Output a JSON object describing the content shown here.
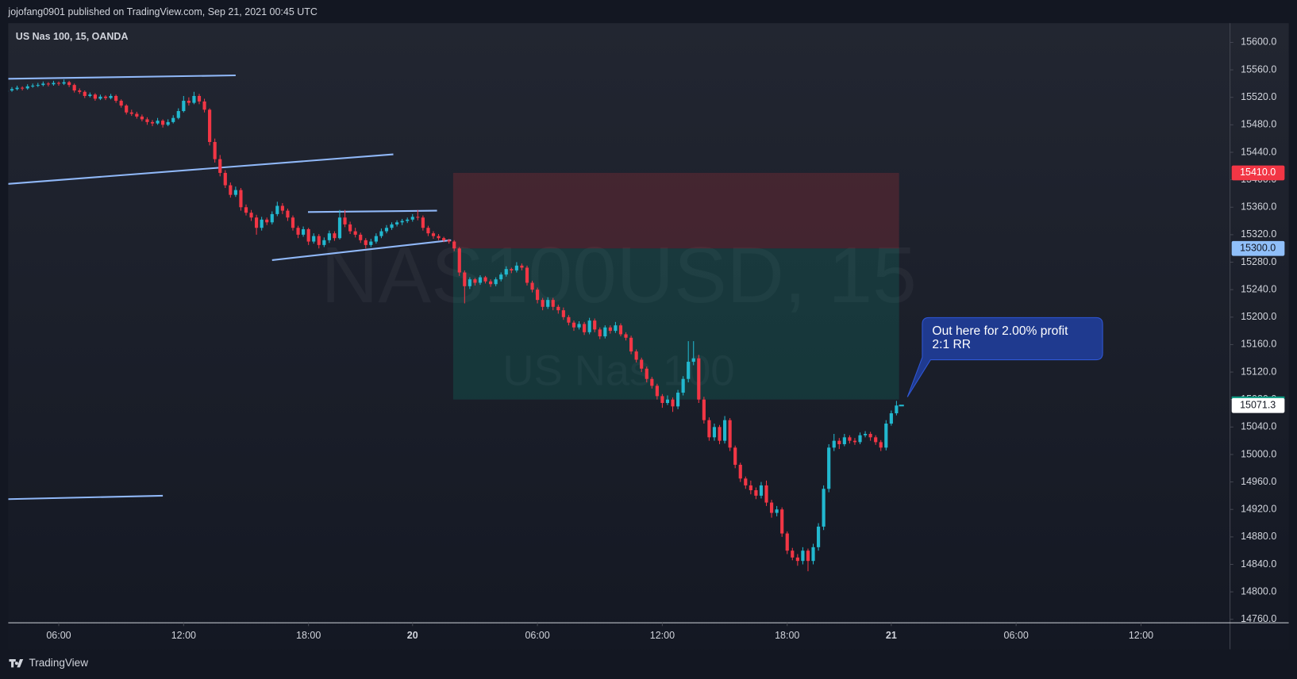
{
  "header": {
    "publisher": "jojofang0901 published on TradingView.com, Sep 21, 2021 00:45 UTC",
    "brand": "TradingView"
  },
  "chart_data": {
    "type": "candlestick",
    "title": "US Nas 100, 15, OANDA",
    "watermark": "NAS100USD, 15",
    "watermark_subtitle": "US Nas 100",
    "up_color": "#22b8cf",
    "down_color": "#f23645",
    "xlim": [
      0.3,
      235.1
    ],
    "xticks": [
      {
        "value": 10,
        "label": "06:00"
      },
      {
        "value": 34,
        "label": "12:00"
      },
      {
        "value": 58,
        "label": "18:00"
      },
      {
        "value": 78,
        "label": "20"
      },
      {
        "value": 102,
        "label": "06:00"
      },
      {
        "value": 126,
        "label": "12:00"
      },
      {
        "value": 150,
        "label": "18:00"
      },
      {
        "value": 170,
        "label": "21"
      },
      {
        "value": 194,
        "label": "06:00"
      },
      {
        "value": 218,
        "label": "12:00"
      }
    ],
    "ylim": [
      14755,
      15628
    ],
    "yticks": [
      {
        "value": 15600,
        "label": "15600.0"
      },
      {
        "value": 15560,
        "label": "15560.0"
      },
      {
        "value": 15520,
        "label": "15520.0"
      },
      {
        "value": 15480,
        "label": "15480.0"
      },
      {
        "value": 15440,
        "label": "15440.0"
      },
      {
        "value": 15400,
        "label": "15400.0"
      },
      {
        "value": 15360,
        "label": "15360.0"
      },
      {
        "value": 15320,
        "label": "15320.0"
      },
      {
        "value": 15280,
        "label": "15280.0"
      },
      {
        "value": 15240,
        "label": "15240.0"
      },
      {
        "value": 15200,
        "label": "15200.0"
      },
      {
        "value": 15160,
        "label": "15160.0"
      },
      {
        "value": 15120,
        "label": "15120.0"
      },
      {
        "value": 15080,
        "label": "15080.0"
      },
      {
        "value": 15040,
        "label": "15040.0"
      },
      {
        "value": 15000,
        "label": "15000.0"
      },
      {
        "value": 14960,
        "label": "14960.0"
      },
      {
        "value": 14920,
        "label": "14920.0"
      },
      {
        "value": 14880,
        "label": "14880.0"
      },
      {
        "value": 14840,
        "label": "14840.0"
      },
      {
        "value": 14800,
        "label": "14800.0"
      },
      {
        "value": 14760,
        "label": "14760.0"
      }
    ],
    "candles": [
      [
        15528,
        15533,
        15525,
        15530
      ],
      [
        15530,
        15535,
        15528,
        15532
      ],
      [
        15532,
        15537,
        15530,
        15534
      ],
      [
        15534,
        15536,
        15530,
        15533
      ],
      [
        15533,
        15539,
        15531,
        15536
      ],
      [
        15536,
        15540,
        15534,
        15537
      ],
      [
        15537,
        15541,
        15535,
        15538
      ],
      [
        15538,
        15543,
        15536,
        15540
      ],
      [
        15540,
        15542,
        15536,
        15539
      ],
      [
        15539,
        15544,
        15537,
        15541
      ],
      [
        15541,
        15543,
        15537,
        15540
      ],
      [
        15540,
        15546,
        15538,
        15542
      ],
      [
        15542,
        15544,
        15535,
        15538
      ],
      [
        15538,
        15540,
        15527,
        15530
      ],
      [
        15530,
        15533,
        15525,
        15528
      ],
      [
        15528,
        15530,
        15519,
        15522
      ],
      [
        15522,
        15527,
        15520,
        15524
      ],
      [
        15524,
        15526,
        15515,
        15518
      ],
      [
        15518,
        15524,
        15516,
        15521
      ],
      [
        15521,
        15523,
        15516,
        15519
      ],
      [
        15519,
        15525,
        15517,
        15522
      ],
      [
        15522,
        15524,
        15512,
        15515
      ],
      [
        15515,
        15517,
        15505,
        15508
      ],
      [
        15508,
        15510,
        15495,
        15498
      ],
      [
        15498,
        15502,
        15493,
        15496
      ],
      [
        15496,
        15499,
        15489,
        15492
      ],
      [
        15492,
        15495,
        15485,
        15488
      ],
      [
        15488,
        15491,
        15480,
        15484
      ],
      [
        15484,
        15487,
        15478,
        15482
      ],
      [
        15482,
        15490,
        15480,
        15486
      ],
      [
        15486,
        15488,
        15476,
        15480
      ],
      [
        15480,
        15488,
        15478,
        15484
      ],
      [
        15484,
        15494,
        15482,
        15490
      ],
      [
        15490,
        15504,
        15488,
        15500
      ],
      [
        15500,
        15522,
        15498,
        15515
      ],
      [
        15515,
        15520,
        15508,
        15512
      ],
      [
        15512,
        15528,
        15510,
        15522
      ],
      [
        15522,
        15525,
        15510,
        15514
      ],
      [
        15514,
        15518,
        15498,
        15502
      ],
      [
        15502,
        15504,
        15450,
        15455
      ],
      [
        15455,
        15460,
        15425,
        15430
      ],
      [
        15430,
        15436,
        15405,
        15410
      ],
      [
        15410,
        15414,
        15388,
        15392
      ],
      [
        15392,
        15396,
        15374,
        15378
      ],
      [
        15378,
        15390,
        15375,
        15385
      ],
      [
        15385,
        15388,
        15355,
        15360
      ],
      [
        15360,
        15364,
        15348,
        15352
      ],
      [
        15352,
        15356,
        15340,
        15345
      ],
      [
        15345,
        15349,
        15320,
        15330
      ],
      [
        15330,
        15346,
        15326,
        15342
      ],
      [
        15342,
        15345,
        15334,
        15338
      ],
      [
        15338,
        15354,
        15335,
        15350
      ],
      [
        15350,
        15368,
        15347,
        15362
      ],
      [
        15362,
        15366,
        15350,
        15355
      ],
      [
        15355,
        15358,
        15340,
        15345
      ],
      [
        15345,
        15348,
        15326,
        15330
      ],
      [
        15330,
        15333,
        15315,
        15320
      ],
      [
        15320,
        15332,
        15317,
        15328
      ],
      [
        15328,
        15330,
        15305,
        15310
      ],
      [
        15310,
        15322,
        15307,
        15318
      ],
      [
        15318,
        15321,
        15300,
        15305
      ],
      [
        15305,
        15316,
        15302,
        15312
      ],
      [
        15312,
        15326,
        15308,
        15322
      ],
      [
        15322,
        15325,
        15311,
        15315
      ],
      [
        15315,
        15356,
        15313,
        15345
      ],
      [
        15345,
        15356,
        15331,
        15335
      ],
      [
        15335,
        15339,
        15321,
        15325
      ],
      [
        15325,
        15330,
        15316,
        15320
      ],
      [
        15320,
        15323,
        15308,
        15312
      ],
      [
        15312,
        15315,
        15300,
        15305
      ],
      [
        15305,
        15314,
        15302,
        15310
      ],
      [
        15310,
        15322,
        15307,
        15318
      ],
      [
        15318,
        15329,
        15315,
        15325
      ],
      [
        15325,
        15334,
        15322,
        15330
      ],
      [
        15330,
        15338,
        15327,
        15335
      ],
      [
        15335,
        15341,
        15332,
        15338
      ],
      [
        15338,
        15343,
        15334,
        15340
      ],
      [
        15340,
        15345,
        15337,
        15342
      ],
      [
        15342,
        15350,
        15339,
        15346
      ],
      [
        15346,
        15356,
        15341,
        15345
      ],
      [
        15345,
        15348,
        15326,
        15330
      ],
      [
        15330,
        15333,
        15318,
        15322
      ],
      [
        15322,
        15325,
        15314,
        15318
      ],
      [
        15318,
        15321,
        15312,
        15315
      ],
      [
        15315,
        15317,
        15309,
        15312
      ],
      [
        15312,
        15314,
        15307,
        15310
      ],
      [
        15310,
        15312,
        15296,
        15300
      ],
      [
        15300,
        15302,
        15260,
        15265
      ],
      [
        15265,
        15268,
        15220,
        15245
      ],
      [
        15245,
        15258,
        15241,
        15255
      ],
      [
        15255,
        15257,
        15246,
        15250
      ],
      [
        15250,
        15261,
        15247,
        15258
      ],
      [
        15258,
        15260,
        15249,
        15252
      ],
      [
        15252,
        15255,
        15244,
        15248
      ],
      [
        15248,
        15258,
        15245,
        15255
      ],
      [
        15255,
        15265,
        15252,
        15262
      ],
      [
        15262,
        15274,
        15259,
        15270
      ],
      [
        15270,
        15272,
        15264,
        15268
      ],
      [
        15268,
        15280,
        15265,
        15275
      ],
      [
        15275,
        15278,
        15268,
        15272
      ],
      [
        15272,
        15275,
        15246,
        15250
      ],
      [
        15250,
        15253,
        15236,
        15240
      ],
      [
        15240,
        15243,
        15220,
        15225
      ],
      [
        15225,
        15228,
        15210,
        15215
      ],
      [
        15215,
        15229,
        15212,
        15225
      ],
      [
        15225,
        15228,
        15210,
        15215
      ],
      [
        15215,
        15218,
        15205,
        15210
      ],
      [
        15210,
        15214,
        15196,
        15200
      ],
      [
        15200,
        15203,
        15188,
        15192
      ],
      [
        15192,
        15195,
        15180,
        15185
      ],
      [
        15185,
        15194,
        15182,
        15190
      ],
      [
        15190,
        15193,
        15174,
        15178
      ],
      [
        15178,
        15199,
        15175,
        15195
      ],
      [
        15195,
        15198,
        15178,
        15182
      ],
      [
        15182,
        15185,
        15168,
        15172
      ],
      [
        15172,
        15188,
        15169,
        15185
      ],
      [
        15185,
        15188,
        15176,
        15180
      ],
      [
        15180,
        15193,
        15177,
        15188
      ],
      [
        15188,
        15191,
        15172,
        15175
      ],
      [
        15175,
        15178,
        15166,
        15170
      ],
      [
        15170,
        15173,
        15146,
        15150
      ],
      [
        15150,
        15153,
        15134,
        15138
      ],
      [
        15138,
        15141,
        15120,
        15125
      ],
      [
        15125,
        15128,
        15105,
        15110
      ],
      [
        15110,
        15113,
        15096,
        15100
      ],
      [
        15100,
        15103,
        15080,
        15085
      ],
      [
        15085,
        15088,
        15068,
        15075
      ],
      [
        15075,
        15086,
        15072,
        15080
      ],
      [
        15080,
        15083,
        15062,
        15070
      ],
      [
        15070,
        15094,
        15066,
        15090
      ],
      [
        15090,
        15114,
        15086,
        15110
      ],
      [
        15110,
        15165,
        15105,
        15135
      ],
      [
        15135,
        15165,
        15130,
        15140
      ],
      [
        15140,
        15145,
        15075,
        15080
      ],
      [
        15080,
        15084,
        15045,
        15050
      ],
      [
        15050,
        15054,
        15020,
        15025
      ],
      [
        15025,
        15045,
        15020,
        15040
      ],
      [
        15040,
        15043,
        15015,
        15020
      ],
      [
        15020,
        15056,
        15016,
        15050
      ],
      [
        15050,
        15053,
        15005,
        15010
      ],
      [
        15010,
        15013,
        14980,
        14985
      ],
      [
        14985,
        14988,
        14960,
        14965
      ],
      [
        14965,
        14968,
        14950,
        14955
      ],
      [
        14955,
        14962,
        14942,
        14948
      ],
      [
        14948,
        14952,
        14935,
        14940
      ],
      [
        14940,
        14960,
        14936,
        14955
      ],
      [
        14955,
        14962,
        14925,
        14930
      ],
      [
        14930,
        14934,
        14908,
        14915
      ],
      [
        14915,
        14925,
        14910,
        14920
      ],
      [
        14920,
        14923,
        14880,
        14885
      ],
      [
        14885,
        14888,
        14855,
        14860
      ],
      [
        14860,
        14864,
        14846,
        14850
      ],
      [
        14850,
        14855,
        14838,
        14845
      ],
      [
        14845,
        14865,
        14840,
        14860
      ],
      [
        14860,
        14863,
        14830,
        14845
      ],
      [
        14845,
        14870,
        14840,
        14865
      ],
      [
        14865,
        14900,
        14860,
        14895
      ],
      [
        14895,
        14955,
        14890,
        14950
      ],
      [
        14950,
        15015,
        14945,
        15010
      ],
      [
        15010,
        15030,
        15005,
        15020
      ],
      [
        15020,
        15024,
        15008,
        15015
      ],
      [
        15015,
        15030,
        15012,
        15025
      ],
      [
        15025,
        15028,
        15016,
        15020
      ],
      [
        15020,
        15024,
        15014,
        15018
      ],
      [
        15018,
        15032,
        15015,
        15028
      ],
      [
        15028,
        15034,
        15025,
        15030
      ],
      [
        15030,
        15033,
        15020,
        15025
      ],
      [
        15025,
        15028,
        15014,
        15018
      ],
      [
        15018,
        15021,
        15005,
        15010
      ],
      [
        15010,
        15050,
        15006,
        15045
      ],
      [
        15045,
        15064,
        15042,
        15060
      ],
      [
        15060,
        15078,
        15057,
        15071.3
      ]
    ],
    "trendlines": [
      {
        "x": [
          0.3,
          44
        ],
        "y": [
          15547,
          15552
        ]
      },
      {
        "x": [
          0.3,
          74.3
        ],
        "y": [
          15394,
          15437
        ]
      },
      {
        "x": [
          57.9,
          82.7
        ],
        "y": [
          15353,
          15355
        ]
      },
      {
        "x": [
          51,
          85.4
        ],
        "y": [
          15283,
          15312
        ]
      },
      {
        "x": [
          0.3,
          30
        ],
        "y": [
          14935,
          14940
        ]
      }
    ],
    "line_color": "#90b8f8",
    "position": {
      "start": 85.8,
      "end": 171.5,
      "stop": {
        "value": 15410,
        "label": "15410.0"
      },
      "entry": {
        "value": 15300,
        "label": "15300.0"
      },
      "target": 15080
    },
    "annotation": [
      "Out here for 2.00% profit",
      "2:1 RR"
    ]
  }
}
